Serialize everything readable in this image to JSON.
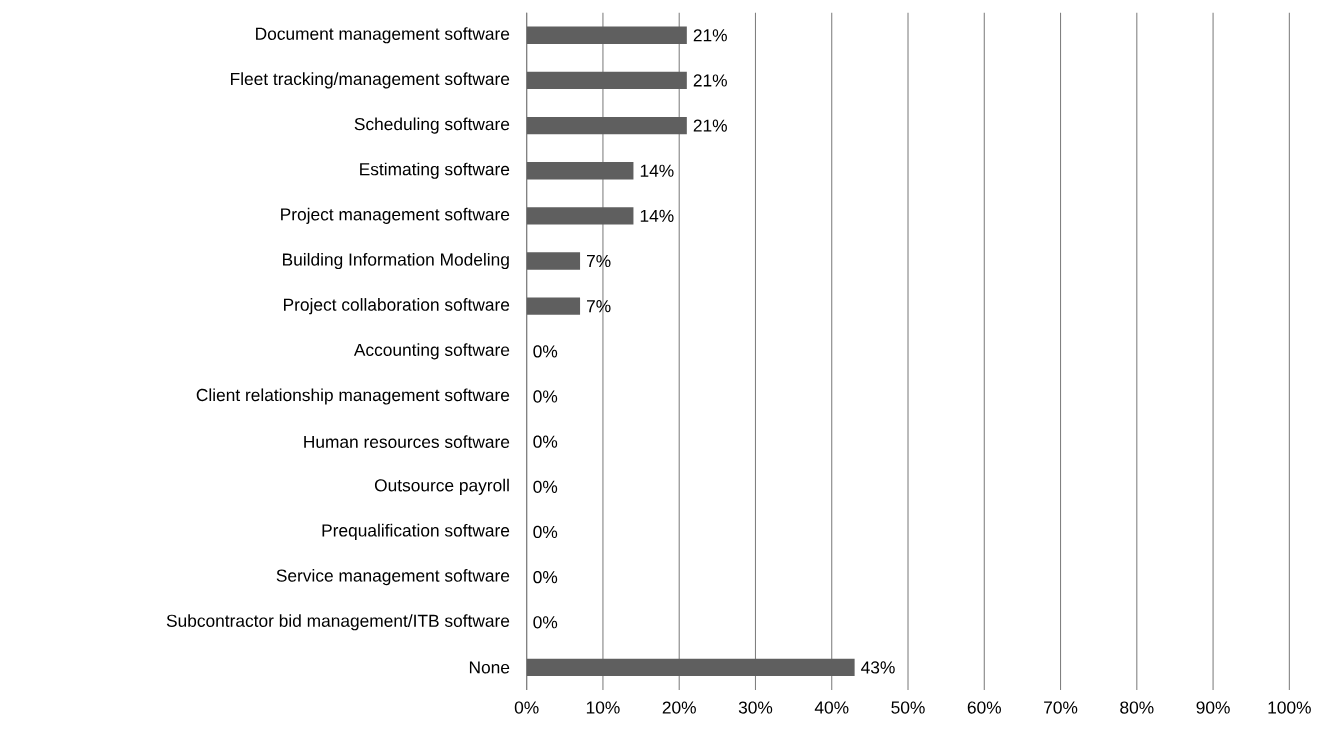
{
  "chart_data": {
    "type": "bar",
    "orientation": "horizontal",
    "categories": [
      "Document management software",
      "Fleet tracking/management software",
      "Scheduling software",
      "Estimating software",
      "Project management software",
      "Building Information Modeling",
      "Project collaboration software",
      "Accounting software",
      "Client relationship management software",
      "Human resources software",
      "Outsource payroll",
      "Prequalification software",
      "Service management software",
      "Subcontractor bid management/ITB software",
      "None"
    ],
    "values": [
      21,
      21,
      21,
      14,
      14,
      7,
      7,
      0,
      0,
      0,
      0,
      0,
      0,
      0,
      43
    ],
    "value_labels": [
      "21%",
      "21%",
      "21%",
      "14%",
      "14%",
      "7%",
      "7%",
      "0%",
      "0%",
      "0%",
      "0%",
      "0%",
      "0%",
      "0%",
      "43%"
    ],
    "color": "#5f5f5f",
    "xlim": [
      0,
      100
    ],
    "xticks": [
      {
        "value": 0,
        "label": "0%"
      },
      {
        "value": 10,
        "label": "10%"
      },
      {
        "value": 20,
        "label": "20%"
      },
      {
        "value": 30,
        "label": "30%"
      },
      {
        "value": 40,
        "label": "40%"
      },
      {
        "value": 50,
        "label": "50%"
      },
      {
        "value": 60,
        "label": "60%"
      },
      {
        "value": 70,
        "label": "70%"
      },
      {
        "value": 80,
        "label": "80%"
      },
      {
        "value": 90,
        "label": "90%"
      },
      {
        "value": 100,
        "label": "100%"
      }
    ],
    "grid": "x"
  }
}
